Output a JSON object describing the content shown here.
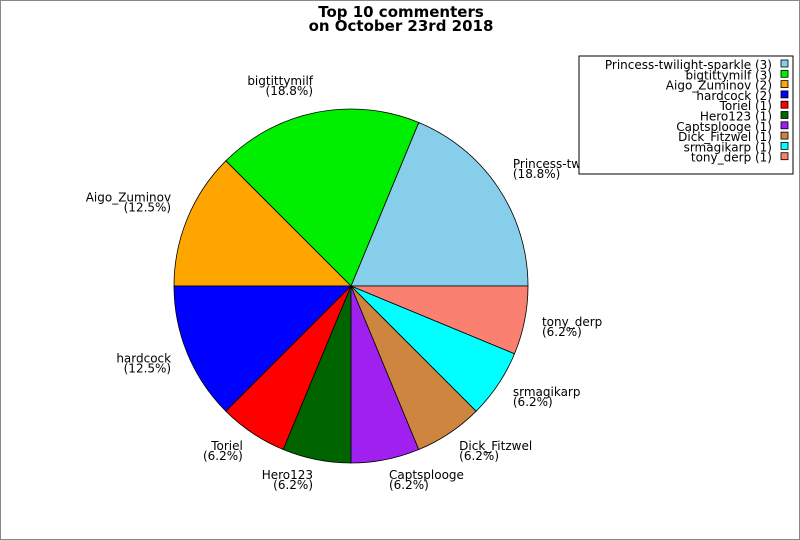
{
  "chart_data": {
    "type": "pie",
    "title": [
      "Top 10 commenters",
      "on October 23rd 2018"
    ],
    "slices": [
      {
        "label": "Princess-twilight-sparkle",
        "value": 3,
        "percent": "18.8%",
        "color": "#87ceeb"
      },
      {
        "label": "bigtittymilf",
        "value": 3,
        "percent": "18.8%",
        "color": "#00ee00"
      },
      {
        "label": "Aigo_Zuminov",
        "value": 2,
        "percent": "12.5%",
        "color": "#ffa500"
      },
      {
        "label": "hardcock",
        "value": 2,
        "percent": "12.5%",
        "color": "#0000ff"
      },
      {
        "label": "Toriel",
        "value": 1,
        "percent": "6.2%",
        "color": "#ff0000"
      },
      {
        "label": "Hero123",
        "value": 1,
        "percent": "6.2%",
        "color": "#006400"
      },
      {
        "label": "Captsplooge",
        "value": 1,
        "percent": "6.2%",
        "color": "#a020f0"
      },
      {
        "label": "Dick_Fitzwel",
        "value": 1,
        "percent": "6.2%",
        "color": "#cd853f"
      },
      {
        "label": "srmagikarp",
        "value": 1,
        "percent": "6.2%",
        "color": "#00ffff"
      },
      {
        "label": "tony_derp",
        "value": 1,
        "percent": "6.2%",
        "color": "#fa8072"
      }
    ],
    "start_angle_deg": 0,
    "direction": "counterclockwise",
    "legend_placement": "top-right",
    "legend_entries": [
      "Princess-twilight-sparkle (3)",
      "bigtittymilf (3)",
      "Aigo_Zuminov (2)",
      "hardcock (2)",
      "Toriel (1)",
      "Hero123 (1)",
      "Captsplooge (1)",
      "Dick_Fitzwel (1)",
      "srmagikarp (1)",
      "tony_derp (1)"
    ]
  }
}
